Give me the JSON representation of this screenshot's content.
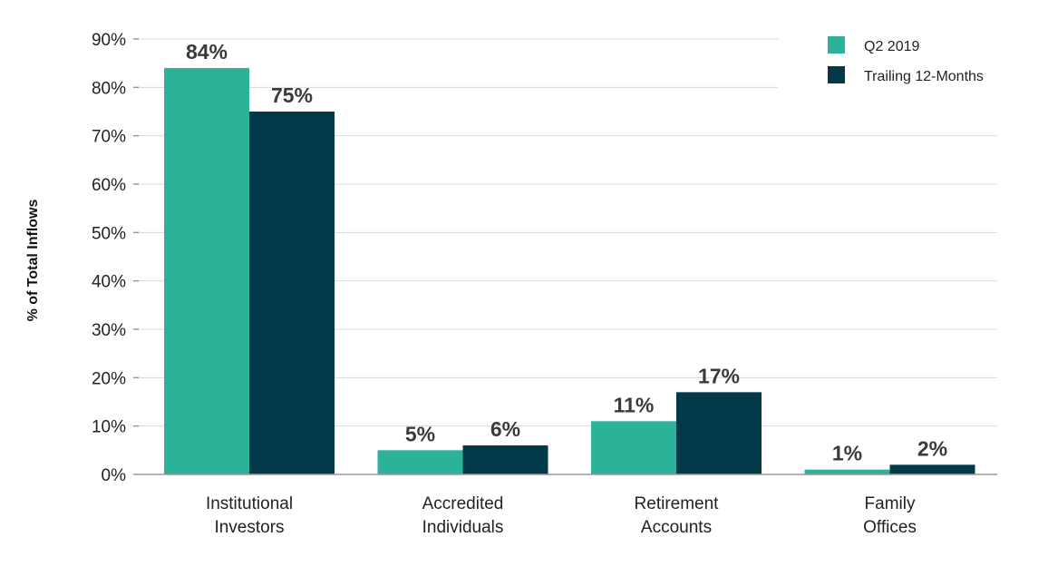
{
  "chart_data": {
    "type": "bar",
    "ylabel": "% of Total Inflows",
    "xlabel": "",
    "ylim": [
      0,
      90
    ],
    "yticks": [
      0,
      10,
      20,
      30,
      40,
      50,
      60,
      70,
      80,
      90
    ],
    "ytick_suffix": "%",
    "categories": [
      [
        "Institutional",
        "Investors"
      ],
      [
        "Accredited",
        "Individuals"
      ],
      [
        "Retirement",
        "Accounts"
      ],
      [
        "Family",
        "Offices"
      ]
    ],
    "series": [
      {
        "name": "Q2 2019",
        "color": "#2bb39a",
        "values": [
          84,
          5,
          11,
          1
        ],
        "labels": [
          "84%",
          "5%",
          "11%",
          "1%"
        ]
      },
      {
        "name": "Trailing 12-Months",
        "color": "#023a4a",
        "values": [
          75,
          6,
          17,
          2
        ],
        "labels": [
          "75%",
          "6%",
          "17%",
          "2%"
        ]
      }
    ],
    "grid": true,
    "legend_position": "top-right"
  }
}
